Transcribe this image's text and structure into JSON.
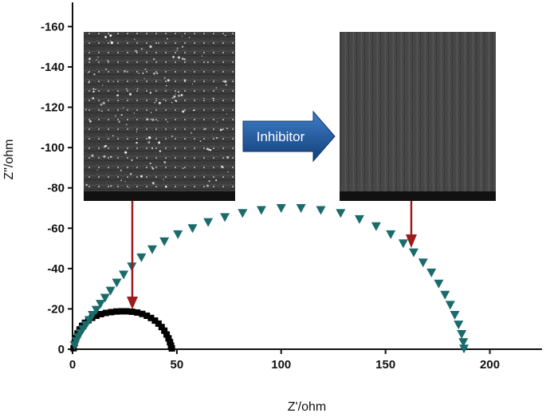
{
  "chart_data": {
    "type": "scatter",
    "xlabel": "Z'/ohm",
    "ylabel": "Z\"/ohm",
    "xlim": [
      0,
      225
    ],
    "ylim": [
      0,
      -172
    ],
    "x_ticks": [
      {
        "value": 0,
        "label": "0"
      },
      {
        "value": 50,
        "label": "50"
      },
      {
        "value": 100,
        "label": "100"
      },
      {
        "value": 150,
        "label": "150"
      },
      {
        "value": 200,
        "label": "200"
      }
    ],
    "y_ticks": [
      {
        "value": 0,
        "label": "0"
      },
      {
        "value": -20,
        "label": "-20"
      },
      {
        "value": -40,
        "label": "-40"
      },
      {
        "value": -60,
        "label": "-60"
      },
      {
        "value": -80,
        "label": "-80"
      },
      {
        "value": -100,
        "label": "-100"
      },
      {
        "value": -120,
        "label": "-120"
      },
      {
        "value": -140,
        "label": "-140"
      },
      {
        "value": -160,
        "label": "-160"
      }
    ],
    "grid": false,
    "series": [
      {
        "marker": "square",
        "color": "#000000",
        "points": [
          [
            0.5,
            -0.5
          ],
          [
            1,
            -3
          ],
          [
            1.6,
            -5.5
          ],
          [
            2.4,
            -7.8
          ],
          [
            3.4,
            -9.8
          ],
          [
            4.6,
            -11.6
          ],
          [
            6,
            -13.1
          ],
          [
            7.6,
            -14.4
          ],
          [
            9.4,
            -15.6
          ],
          [
            11.4,
            -16.6
          ],
          [
            13.6,
            -17.4
          ],
          [
            16,
            -18
          ],
          [
            18.5,
            -18.4
          ],
          [
            21,
            -18.7
          ],
          [
            23.5,
            -18.8
          ],
          [
            26,
            -18.8
          ],
          [
            28.5,
            -18.6
          ],
          [
            31,
            -18.2
          ],
          [
            33.4,
            -17.5
          ],
          [
            35.6,
            -16.6
          ],
          [
            37.6,
            -15.5
          ],
          [
            39.5,
            -14.2
          ],
          [
            41.2,
            -12.7
          ],
          [
            42.7,
            -11
          ],
          [
            44,
            -9.2
          ],
          [
            45.1,
            -7.3
          ],
          [
            46,
            -5.4
          ],
          [
            46.7,
            -3.5
          ],
          [
            47.2,
            -1.8
          ],
          [
            47.6,
            -0.4
          ]
        ]
      },
      {
        "marker": "triangle-down",
        "color": "#1a6b6b",
        "points": [
          [
            1,
            -2
          ],
          [
            1.8,
            -4
          ],
          [
            2.7,
            -6
          ],
          [
            3.8,
            -8
          ],
          [
            5,
            -10
          ],
          [
            6.4,
            -12
          ],
          [
            8,
            -14.5
          ],
          [
            9.6,
            -17
          ],
          [
            11.4,
            -19.5
          ],
          [
            13.4,
            -22.5
          ],
          [
            15.6,
            -25.5
          ],
          [
            18.2,
            -29
          ],
          [
            21.2,
            -33
          ],
          [
            24.5,
            -37
          ],
          [
            28.4,
            -41
          ],
          [
            33,
            -45.5
          ],
          [
            38.2,
            -49.5
          ],
          [
            44,
            -53.5
          ],
          [
            50.5,
            -57
          ],
          [
            57.5,
            -60
          ],
          [
            65,
            -63
          ],
          [
            73,
            -65.5
          ],
          [
            81.5,
            -67.5
          ],
          [
            90.5,
            -69
          ],
          [
            100,
            -70
          ],
          [
            109.5,
            -70
          ],
          [
            119,
            -69
          ],
          [
            128.5,
            -67.5
          ],
          [
            137.5,
            -64.5
          ],
          [
            145.5,
            -61
          ],
          [
            152.5,
            -57
          ],
          [
            158.5,
            -52.5
          ],
          [
            163.5,
            -48
          ],
          [
            168,
            -43
          ],
          [
            172,
            -38
          ],
          [
            175.5,
            -32.5
          ],
          [
            178.5,
            -27
          ],
          [
            181,
            -22
          ],
          [
            183.2,
            -17
          ],
          [
            185,
            -12.2
          ],
          [
            186.5,
            -7.5
          ],
          [
            187.3,
            -3.5
          ],
          [
            187.6,
            -0.3
          ]
        ]
      }
    ]
  },
  "annotations": {
    "arrow_text": "Inhibitor",
    "arrow_fill": "#1f5fa6",
    "pointer_color": "#9b1c1c"
  }
}
